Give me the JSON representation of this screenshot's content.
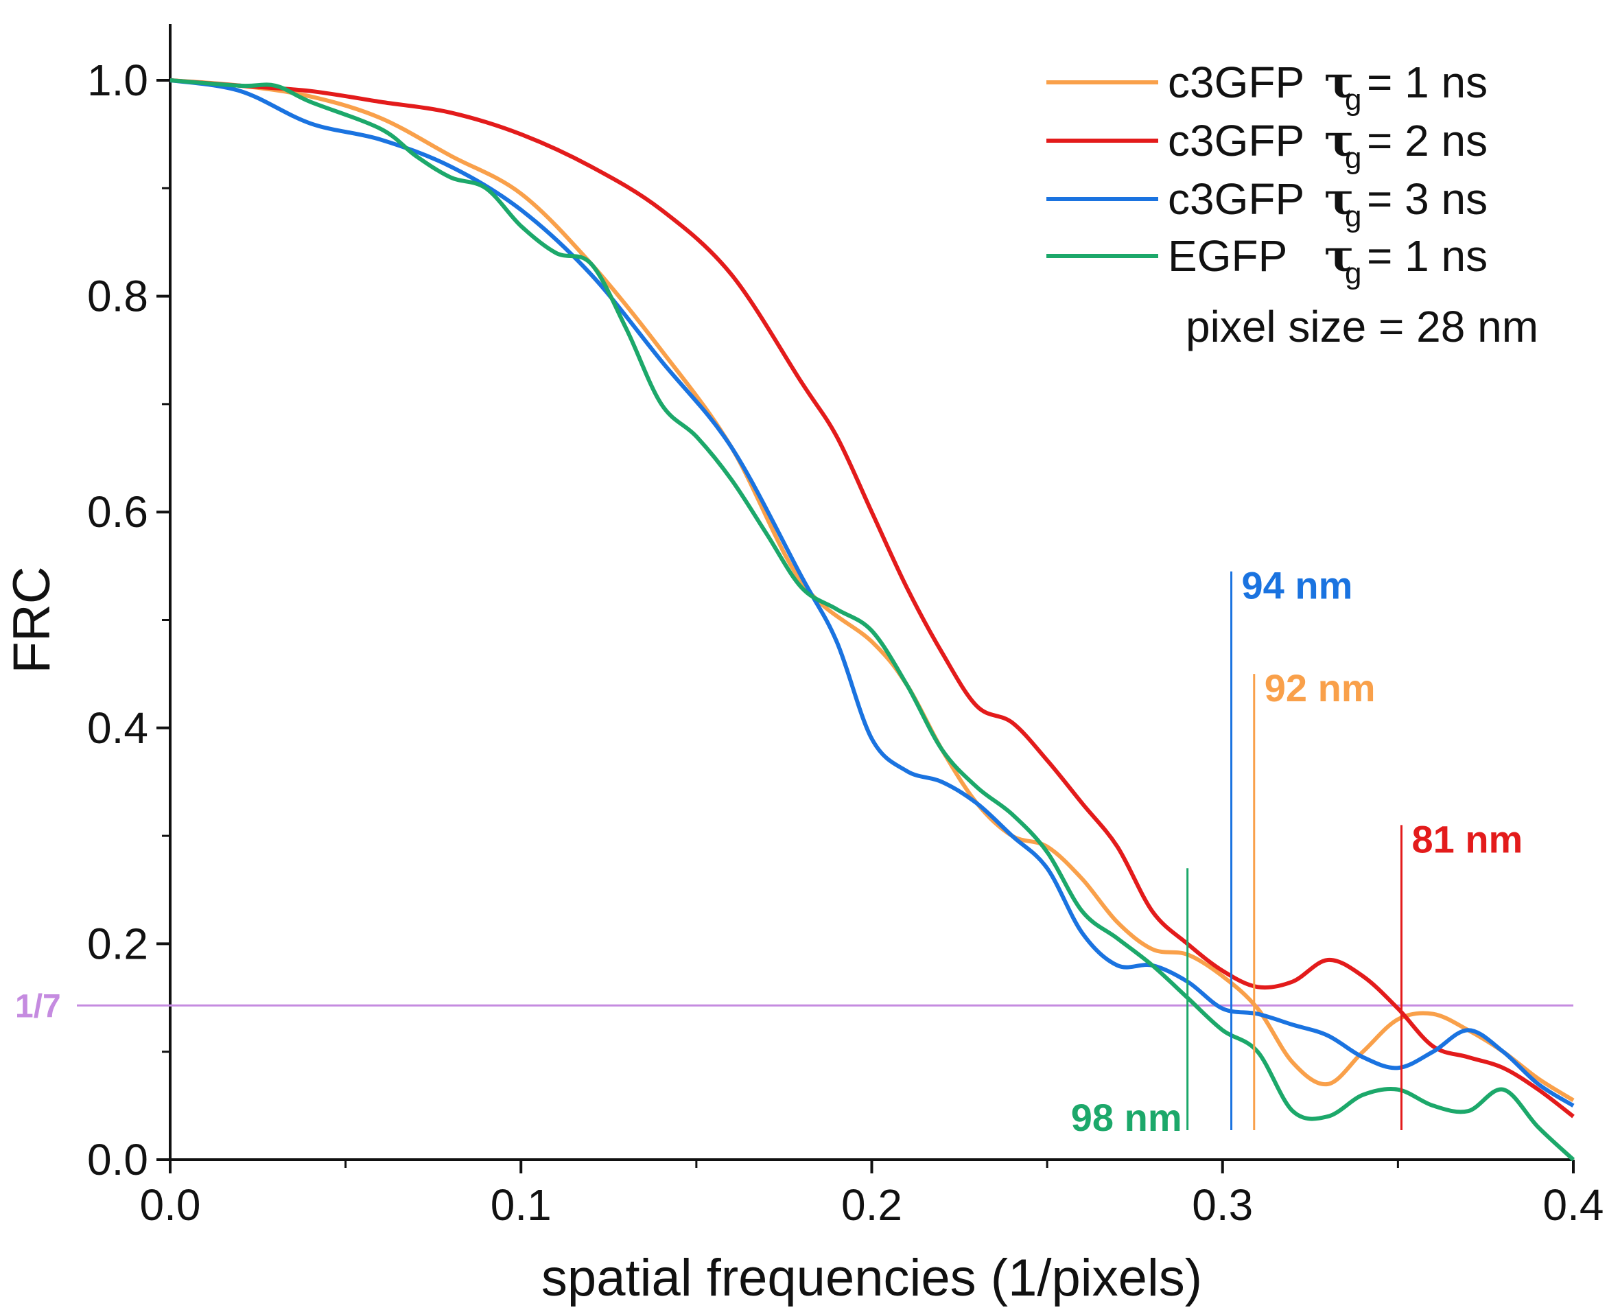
{
  "chart_data": {
    "type": "line",
    "xlabel": "spatial frequencies (1/pixels)",
    "ylabel": "FRC",
    "xlim": [
      0,
      0.4
    ],
    "ylim": [
      0,
      1.0
    ],
    "x_ticks": [
      "0.0",
      "0.1",
      "0.2",
      "0.3",
      "0.4"
    ],
    "y_ticks": [
      "0.0",
      "0.2",
      "0.4",
      "0.6",
      "0.8",
      "1.0"
    ],
    "x_tick_values": [
      0,
      0.1,
      0.2,
      0.3,
      0.4
    ],
    "y_tick_values": [
      0,
      0.2,
      0.4,
      0.6,
      0.8,
      1.0
    ],
    "x_minor_step": 0.05,
    "y_minor_step": 0.1,
    "grid": false,
    "legend_position": "top-right",
    "threshold": {
      "label": "1/7",
      "value": 0.142857,
      "color": "#c58be0"
    },
    "note": "pixel size = 28 nm",
    "series": [
      {
        "legend_prefix": "c3GFP",
        "legend_tau": "τ",
        "legend_sub": "g",
        "legend_suffix": "= 1 ns",
        "color": "#f9a04a",
        "x": [
          0,
          0.02,
          0.04,
          0.06,
          0.08,
          0.1,
          0.12,
          0.14,
          0.16,
          0.18,
          0.2,
          0.21,
          0.22,
          0.23,
          0.24,
          0.25,
          0.26,
          0.27,
          0.28,
          0.29,
          0.3,
          0.31,
          0.32,
          0.33,
          0.34,
          0.35,
          0.36,
          0.37,
          0.38,
          0.39,
          0.4
        ],
        "y": [
          1.0,
          0.995,
          0.985,
          0.965,
          0.93,
          0.895,
          0.83,
          0.75,
          0.66,
          0.535,
          0.48,
          0.44,
          0.38,
          0.33,
          0.3,
          0.29,
          0.26,
          0.22,
          0.195,
          0.19,
          0.17,
          0.14,
          0.09,
          0.07,
          0.1,
          0.13,
          0.135,
          0.12,
          0.1,
          0.075,
          0.055
        ]
      },
      {
        "legend_prefix": "c3GFP",
        "legend_tau": "τ",
        "legend_sub": "g",
        "legend_suffix": "= 2 ns",
        "color": "#e31b1b",
        "x": [
          0,
          0.02,
          0.04,
          0.06,
          0.08,
          0.1,
          0.12,
          0.14,
          0.16,
          0.18,
          0.19,
          0.2,
          0.21,
          0.22,
          0.23,
          0.24,
          0.25,
          0.26,
          0.27,
          0.28,
          0.29,
          0.3,
          0.31,
          0.32,
          0.33,
          0.34,
          0.35,
          0.36,
          0.37,
          0.38,
          0.39,
          0.4
        ],
        "y": [
          1.0,
          0.995,
          0.99,
          0.98,
          0.97,
          0.95,
          0.92,
          0.88,
          0.82,
          0.72,
          0.67,
          0.6,
          0.53,
          0.47,
          0.42,
          0.405,
          0.37,
          0.33,
          0.29,
          0.23,
          0.2,
          0.175,
          0.16,
          0.165,
          0.185,
          0.17,
          0.14,
          0.105,
          0.095,
          0.085,
          0.065,
          0.04
        ]
      },
      {
        "legend_prefix": "c3GFP",
        "legend_tau": "τ",
        "legend_sub": "g",
        "legend_suffix": "= 3 ns",
        "color": "#1a73e0",
        "x": [
          0,
          0.02,
          0.04,
          0.06,
          0.08,
          0.1,
          0.12,
          0.14,
          0.16,
          0.18,
          0.19,
          0.2,
          0.21,
          0.22,
          0.23,
          0.24,
          0.25,
          0.26,
          0.27,
          0.28,
          0.29,
          0.3,
          0.31,
          0.32,
          0.33,
          0.34,
          0.35,
          0.36,
          0.37,
          0.38,
          0.39,
          0.4
        ],
        "y": [
          1.0,
          0.99,
          0.96,
          0.945,
          0.92,
          0.88,
          0.82,
          0.74,
          0.66,
          0.54,
          0.48,
          0.39,
          0.36,
          0.35,
          0.33,
          0.3,
          0.27,
          0.21,
          0.18,
          0.18,
          0.165,
          0.14,
          0.135,
          0.125,
          0.115,
          0.095,
          0.085,
          0.1,
          0.12,
          0.1,
          0.07,
          0.05
        ]
      },
      {
        "legend_prefix": "EGFP",
        "legend_tau": "τ",
        "legend_sub": "g",
        "legend_suffix": "= 1 ns",
        "color": "#1ca86a",
        "x": [
          0,
          0.02,
          0.03,
          0.04,
          0.06,
          0.07,
          0.08,
          0.09,
          0.1,
          0.11,
          0.12,
          0.13,
          0.14,
          0.15,
          0.16,
          0.17,
          0.18,
          0.19,
          0.2,
          0.21,
          0.22,
          0.23,
          0.24,
          0.25,
          0.26,
          0.27,
          0.28,
          0.29,
          0.3,
          0.31,
          0.32,
          0.33,
          0.34,
          0.35,
          0.36,
          0.37,
          0.38,
          0.39,
          0.4
        ],
        "y": [
          1.0,
          0.995,
          0.995,
          0.98,
          0.955,
          0.93,
          0.91,
          0.9,
          0.865,
          0.84,
          0.83,
          0.77,
          0.7,
          0.67,
          0.63,
          0.58,
          0.53,
          0.51,
          0.49,
          0.44,
          0.38,
          0.345,
          0.32,
          0.285,
          0.23,
          0.205,
          0.18,
          0.15,
          0.12,
          0.1,
          0.045,
          0.04,
          0.06,
          0.065,
          0.05,
          0.045,
          0.065,
          0.03,
          0.0
        ]
      }
    ],
    "annotations": [
      {
        "label": "94 nm",
        "x": 0.3025,
        "y_top": 0.545,
        "color": "#1a73e0",
        "label_side": "right"
      },
      {
        "label": "92 nm",
        "x": 0.309,
        "y_top": 0.45,
        "color": "#f9a04a",
        "label_side": "right"
      },
      {
        "label": "81 nm",
        "x": 0.351,
        "y_top": 0.31,
        "color": "#e31b1b",
        "label_side": "right"
      },
      {
        "label": "98 nm",
        "x": 0.29,
        "y_top": 0.27,
        "color": "#1ca86a",
        "label_side": "left-bottom"
      }
    ]
  }
}
